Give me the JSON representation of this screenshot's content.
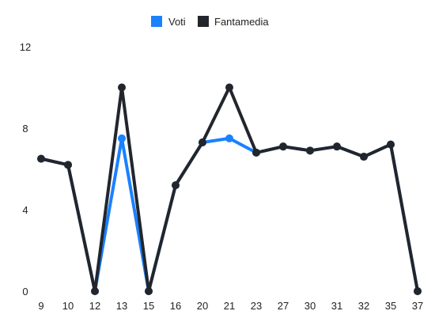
{
  "chart_data": {
    "type": "line",
    "categories": [
      "9",
      "10",
      "12",
      "13",
      "15",
      "16",
      "20",
      "21",
      "23",
      "27",
      "30",
      "31",
      "32",
      "35",
      "37"
    ],
    "series": [
      {
        "name": "Voti",
        "color": "#1a81ff",
        "values": [
          6.5,
          6.2,
          0,
          7.5,
          0,
          5.2,
          7.3,
          7.5,
          6.8,
          7.1,
          6.9,
          7.1,
          6.6,
          7.2,
          0
        ]
      },
      {
        "name": "Fantamedia",
        "color": "#22262c",
        "values": [
          6.5,
          6.2,
          0,
          10,
          0,
          5.2,
          7.3,
          10,
          6.8,
          7.1,
          6.9,
          7.1,
          6.6,
          7.2,
          0
        ]
      }
    ],
    "yticks": [
      "0",
      "4",
      "8",
      "12"
    ],
    "ylim": [
      0,
      12
    ],
    "grid": false,
    "legend": "top-center",
    "title": "",
    "xlabel": "",
    "ylabel": ""
  }
}
